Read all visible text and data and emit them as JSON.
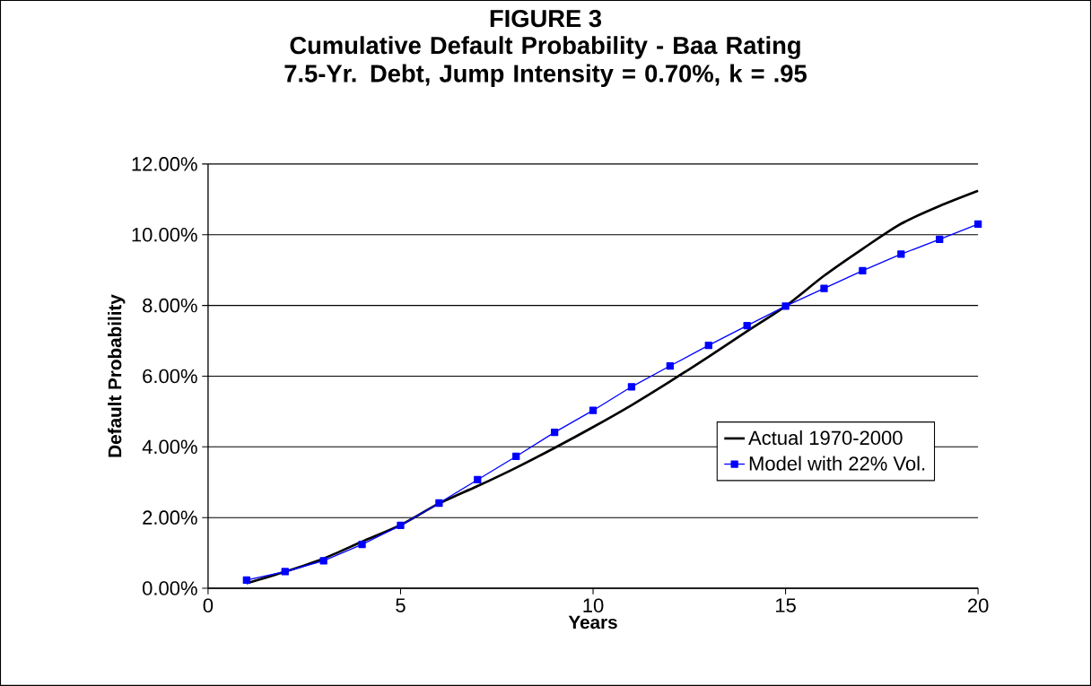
{
  "chart_data": {
    "type": "line",
    "title": "FIGURE 3",
    "subtitle": "Cumulative Default Probability - Baa Rating 7.5-Yr. Debt, Jump Intensity = 0.70%, k = .95",
    "xlabel": "Years",
    "ylabel": "Default Probability",
    "x": [
      1,
      2,
      3,
      4,
      5,
      6,
      7,
      8,
      9,
      10,
      11,
      12,
      13,
      14,
      15,
      16,
      17,
      18,
      19,
      20
    ],
    "series": [
      {
        "name": "Actual 1970-2000",
        "color": "#000000",
        "marker": "none",
        "values": [
          0.14,
          0.47,
          0.84,
          1.32,
          1.79,
          2.4,
          2.89,
          3.41,
          3.97,
          4.56,
          5.18,
          5.85,
          6.55,
          7.27,
          7.98,
          8.84,
          9.6,
          10.31,
          10.81,
          11.24
        ]
      },
      {
        "name": "Model with 22% Vol.",
        "color": "#0000ff",
        "marker": "square",
        "values": [
          0.23,
          0.47,
          0.78,
          1.24,
          1.78,
          2.41,
          3.07,
          3.73,
          4.41,
          5.03,
          5.7,
          6.29,
          6.87,
          7.43,
          7.98,
          8.48,
          8.98,
          9.45,
          9.87,
          10.3
        ]
      }
    ],
    "xlim": [
      0,
      20
    ],
    "xticks": [
      0,
      5,
      10,
      15,
      20
    ],
    "ylim": [
      0,
      12
    ],
    "yticks": [
      {
        "value": 0,
        "label": "0.00%"
      },
      {
        "value": 2,
        "label": "2.00%"
      },
      {
        "value": 4,
        "label": "4.00%"
      },
      {
        "value": 6,
        "label": "6.00%"
      },
      {
        "value": 8,
        "label": "8.00%"
      },
      {
        "value": 10,
        "label": "10.00%"
      },
      {
        "value": 12,
        "label": "12.00%"
      }
    ],
    "grid": "y",
    "legend": "bottom right",
    "line_style": "solid"
  }
}
